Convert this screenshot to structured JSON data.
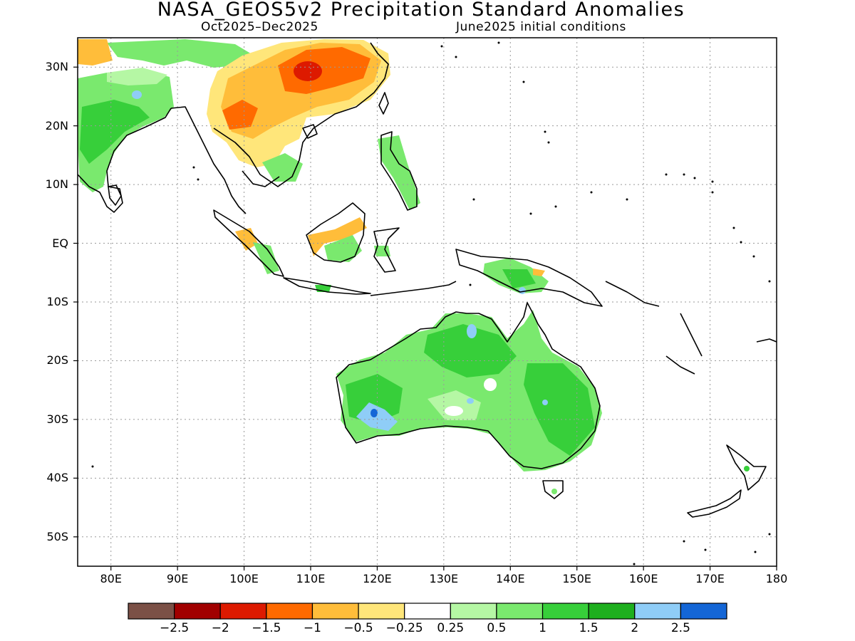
{
  "title": "NASA_GEOS5v2 Precipitation Standard Anomalies",
  "subtitle_left": "Oct2025–Dec2025",
  "subtitle_right": "June2025 initial conditions",
  "map": {
    "lon_range": [
      75,
      180
    ],
    "lat_range": [
      -55,
      35
    ],
    "lat_ticks": [
      {
        "value": 30,
        "label": "30N"
      },
      {
        "value": 20,
        "label": "20N"
      },
      {
        "value": 10,
        "label": "10N"
      },
      {
        "value": 0,
        "label": "EQ"
      },
      {
        "value": -10,
        "label": "10S"
      },
      {
        "value": -20,
        "label": "20S"
      },
      {
        "value": -30,
        "label": "30S"
      },
      {
        "value": -40,
        "label": "40S"
      },
      {
        "value": -50,
        "label": "50S"
      }
    ],
    "lon_ticks": [
      {
        "value": 80,
        "label": "80E"
      },
      {
        "value": 90,
        "label": "90E"
      },
      {
        "value": 100,
        "label": "100E"
      },
      {
        "value": 110,
        "label": "110E"
      },
      {
        "value": 120,
        "label": "120E"
      },
      {
        "value": 130,
        "label": "130E"
      },
      {
        "value": 140,
        "label": "140E"
      },
      {
        "value": 150,
        "label": "150E"
      },
      {
        "value": 160,
        "label": "160E"
      },
      {
        "value": 170,
        "label": "170E"
      },
      {
        "value": 180,
        "label": "180"
      }
    ],
    "grid": true
  },
  "colorbar": {
    "colors": [
      "#7b5046",
      "#a10000",
      "#dd1a00",
      "#ff6a00",
      "#ffbd3a",
      "#ffe67a",
      "#ffffff",
      "#b5f7a4",
      "#7ae96e",
      "#37cf3a",
      "#1eaf1e",
      "#8fcdf7",
      "#1466d6"
    ],
    "labels": [
      "−2.5",
      "−2",
      "−1.5",
      "−1",
      "−0.5",
      "−0.25",
      "0.25",
      "0.5",
      "1",
      "1.5",
      "2",
      "2.5"
    ]
  }
}
